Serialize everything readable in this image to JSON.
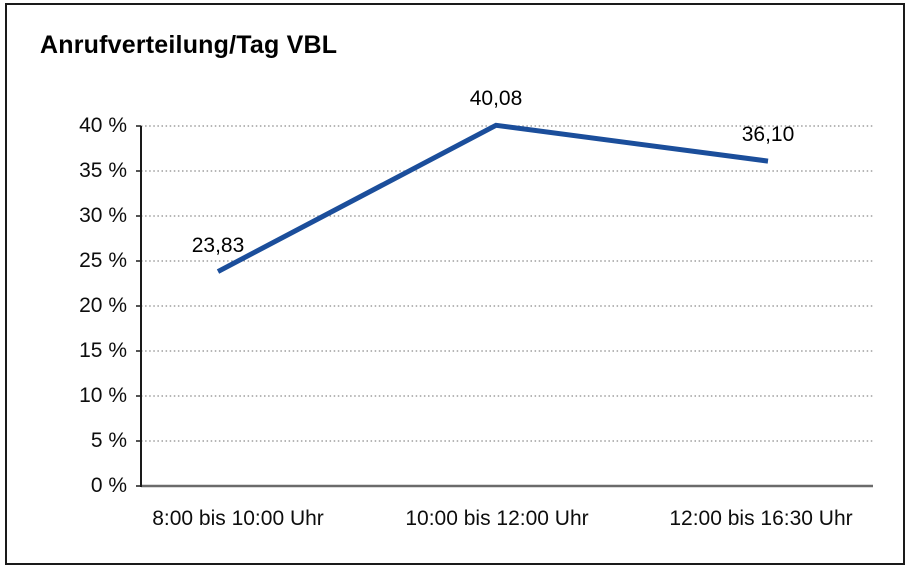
{
  "window": {
    "background_color": "#ffffff",
    "border_color": "#1a1a1a"
  },
  "chart_data": {
    "type": "line",
    "title": "Anrufverteilung/Tag VBL",
    "categories": [
      "8:00 bis 10:00 Uhr",
      "10:00 bis 12:00 Uhr",
      "12:00 bis 16:30 Uhr"
    ],
    "values": [
      23.83,
      40.08,
      36.1
    ],
    "value_labels": [
      "23,83",
      "40,08",
      "36,10"
    ],
    "xlabel": "",
    "ylabel": "",
    "ylim": [
      0,
      40
    ],
    "ytick_step": 5,
    "ytick_labels": [
      "0 %",
      "5 %",
      "10 %",
      "15 %",
      "20 %",
      "25 %",
      "30 %",
      "35 %",
      "40 %"
    ],
    "grid": "horizontal-dotted",
    "legend": "none",
    "colors": {
      "line": "#1B4E9B",
      "gridline": "#8a8a8a",
      "x_axis": "#6b6b6b",
      "y_axis": "#1a1a1a",
      "text": "#000000"
    }
  }
}
